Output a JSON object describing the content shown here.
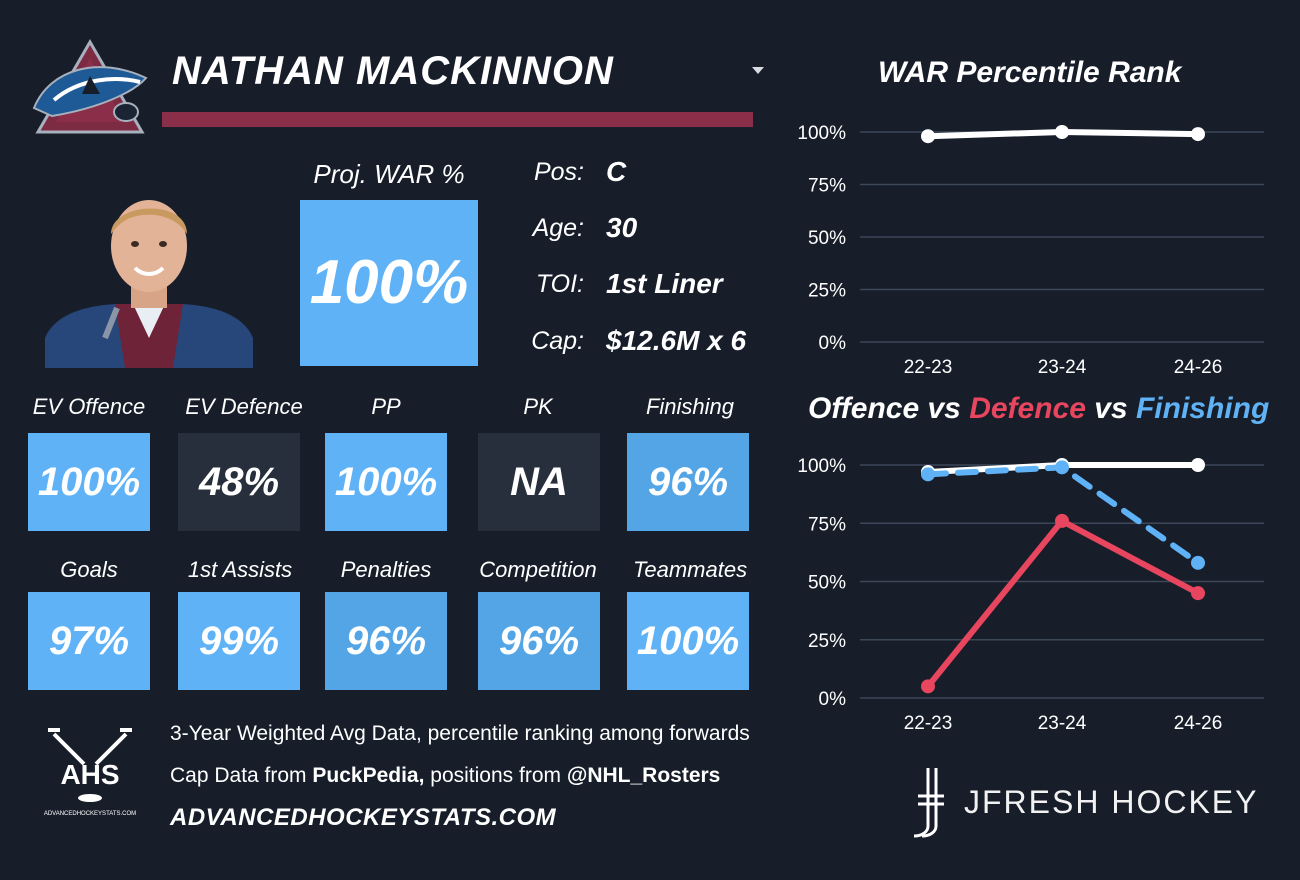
{
  "player": {
    "name": "NATHAN MACKINNON",
    "proj_war_label": "Proj. WAR %",
    "proj_war_value": "100%"
  },
  "info": [
    {
      "label": "Pos:",
      "value": "C"
    },
    {
      "label": "Age:",
      "value": "30"
    },
    {
      "label": "TOI:",
      "value": "1st Liner"
    },
    {
      "label": "Cap:",
      "value": "$12.6M x 6"
    }
  ],
  "stats_row1": [
    {
      "label": "EV Offence",
      "value": "100%",
      "style": "blue"
    },
    {
      "label": "EV Defence",
      "value": "48%",
      "style": "dark"
    },
    {
      "label": "PP",
      "value": "100%",
      "style": "blue"
    },
    {
      "label": "PK",
      "value": "NA",
      "style": "dark"
    },
    {
      "label": "Finishing",
      "value": "96%",
      "style": "blue2"
    }
  ],
  "stats_row2": [
    {
      "label": "Goals",
      "value": "97%",
      "style": "blue"
    },
    {
      "label": "1st Assists",
      "value": "99%",
      "style": "blue"
    },
    {
      "label": "Penalties",
      "value": "96%",
      "style": "blue2"
    },
    {
      "label": "Competition",
      "value": "96%",
      "style": "blue2"
    },
    {
      "label": "Teammates",
      "value": "100%",
      "style": "blue"
    }
  ],
  "footer": {
    "line1": "3-Year Weighted Avg Data, percentile ranking among forwards",
    "line2_prefix": "Cap Data from ",
    "line2_bold1": "PuckPedia,",
    "line2_mid": " positions from ",
    "line2_bold2": "@NHL_Rosters",
    "site": "ADVANCEDHOCKEYSTATS.COM",
    "ahs_logo_text": "AHS",
    "ahs_logo_subtext": "ADVANCEDHOCKEYSTATS.COM"
  },
  "brand": {
    "name": "JFRESH HOCKEY"
  },
  "colors": {
    "background": "#171e2a",
    "tile_blue": "#5fb2f5",
    "tile_dark": "#272f3c",
    "accent_maroon": "#8a2e49",
    "defence_red": "#e8455f",
    "finishing_blue": "#5fb2f5",
    "offence_white": "#ffffff"
  },
  "icons": {
    "team_logo": "colorado-avalanche-logo",
    "select": "chevron-down-icon",
    "ahs": "ahs-logo",
    "jfresh": "jfresh-hockey-stick-logo"
  },
  "chart_data": [
    {
      "type": "line",
      "title": "WAR Percentile Rank",
      "categories": [
        "22-23",
        "23-24",
        "24-26"
      ],
      "series": [
        {
          "values": [
            98,
            100,
            99
          ],
          "color": "#ffffff",
          "dash": false
        }
      ],
      "ylim": [
        0,
        100
      ],
      "yticks": [
        "0%",
        "25%",
        "50%",
        "75%",
        "100%"
      ],
      "grid": true
    },
    {
      "type": "line",
      "title_parts": [
        {
          "text": "Offence",
          "color": "#ffffff"
        },
        {
          "text": " vs ",
          "color": "#ffffff"
        },
        {
          "text": "Defence",
          "color": "#e8455f"
        },
        {
          "text": " vs ",
          "color": "#ffffff"
        },
        {
          "text": "Finishing",
          "color": "#5fb2f5"
        }
      ],
      "categories": [
        "22-23",
        "23-24",
        "24-26"
      ],
      "series": [
        {
          "values": [
            97,
            100,
            100
          ],
          "color": "#ffffff",
          "dash": false
        },
        {
          "values": [
            96,
            99,
            58
          ],
          "color": "#5fb2f5",
          "dash": true
        },
        {
          "values": [
            5,
            76,
            45
          ],
          "color": "#e8455f",
          "dash": false
        }
      ],
      "ylim": [
        0,
        100
      ],
      "yticks": [
        "0%",
        "25%",
        "50%",
        "75%",
        "100%"
      ],
      "grid": true
    }
  ]
}
